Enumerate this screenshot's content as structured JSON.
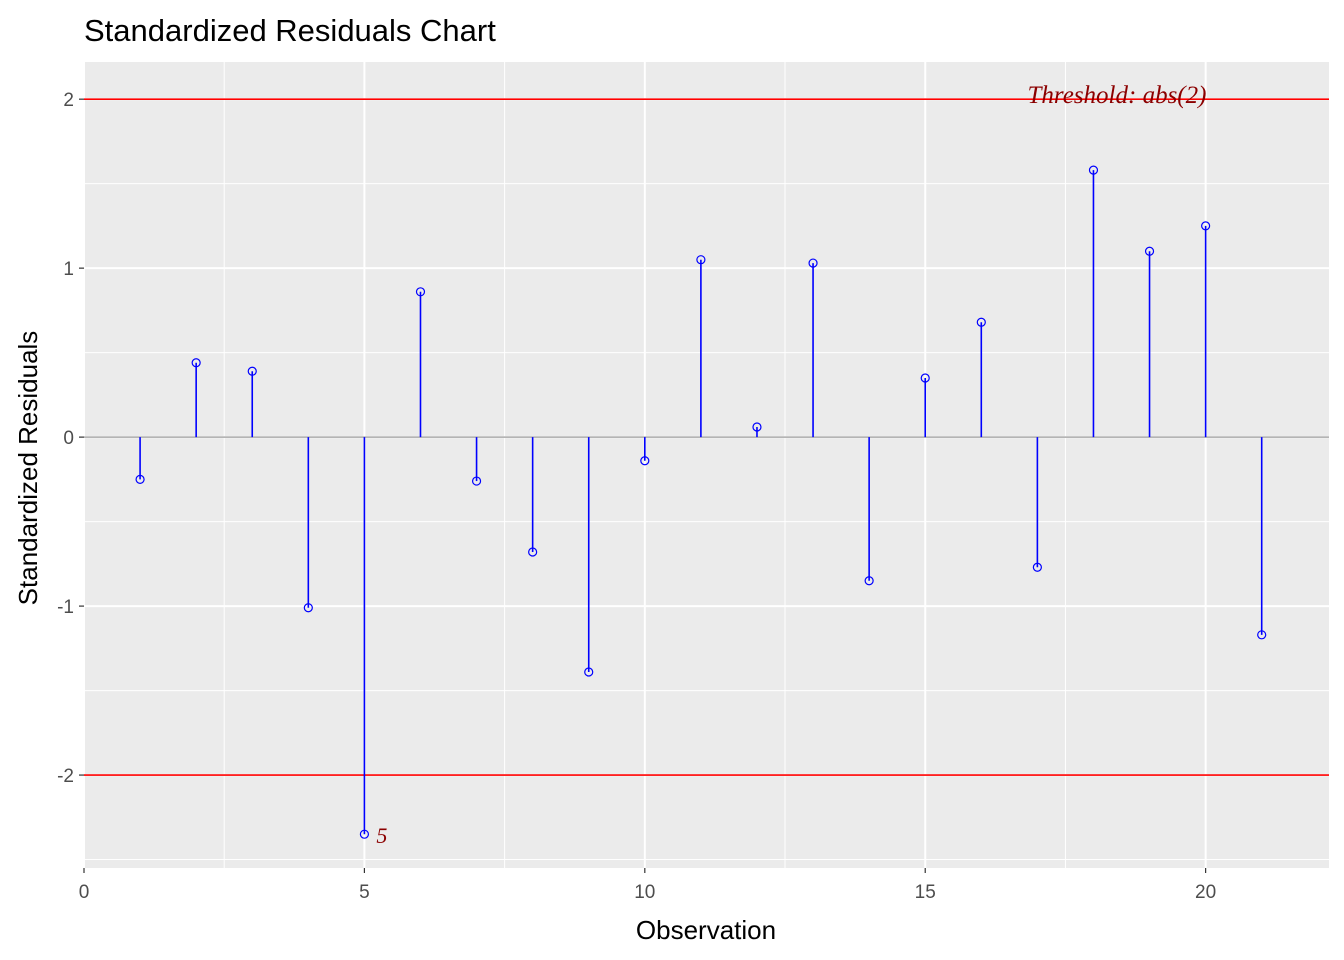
{
  "chart_data": {
    "type": "scatter",
    "style": "stem",
    "title": "Standardized Residuals Chart",
    "xlabel": "Observation",
    "ylabel": "Standardized Residuals",
    "xlim": [
      0,
      22.2
    ],
    "ylim": [
      -2.55,
      2.22
    ],
    "x_ticks": [
      0,
      5,
      10,
      15,
      20
    ],
    "y_ticks": [
      -2,
      -1,
      0,
      1,
      2
    ],
    "x_tick_labels": [
      "0",
      "5",
      "10",
      "15",
      "20"
    ],
    "y_tick_labels": [
      "-2",
      "-1",
      "0",
      "1",
      "2"
    ],
    "grid": true,
    "baseline": 0,
    "thresholds": [
      2,
      -2
    ],
    "threshold_label": "Threshold: abs(2)",
    "x": [
      1,
      2,
      3,
      4,
      5,
      6,
      7,
      8,
      9,
      10,
      11,
      12,
      13,
      14,
      15,
      16,
      17,
      18,
      19,
      20,
      21
    ],
    "values": [
      -0.25,
      0.44,
      0.39,
      -1.01,
      -2.35,
      0.86,
      -0.26,
      -0.68,
      -1.39,
      -0.14,
      1.05,
      0.06,
      1.03,
      -0.85,
      0.35,
      0.68,
      -0.77,
      1.58,
      1.1,
      1.25,
      -1.17
    ],
    "point_labels": [
      {
        "x": 5,
        "y": -2.35,
        "text": "5"
      }
    ],
    "colors": {
      "panel_background": "#EBEBEB",
      "grid": "#FFFFFF",
      "stem": "#0000FF",
      "threshold_line": "#FF0000",
      "baseline": "#A9A9A9",
      "annotation_text": "#8B0000"
    }
  }
}
